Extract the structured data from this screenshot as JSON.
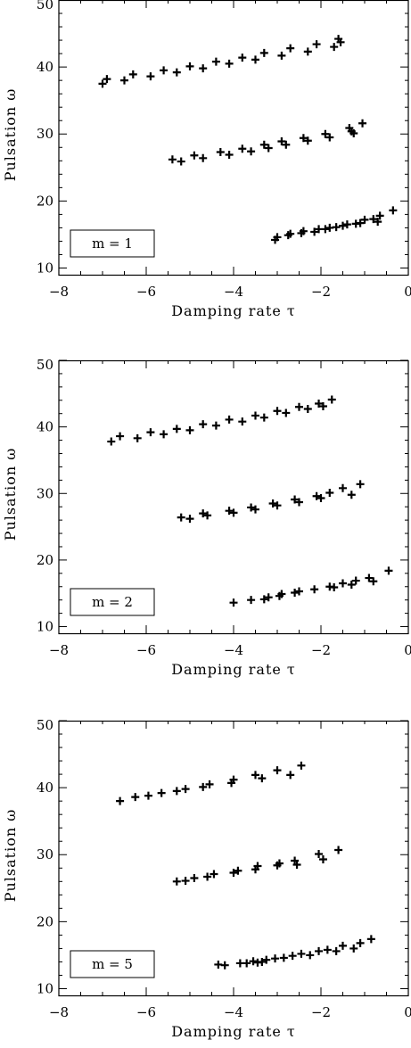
{
  "chart_data": [
    {
      "type": "scatter",
      "marker": "plus",
      "xlabel": "Damping rate τ",
      "ylabel": "Pulsation ω",
      "xlim": [
        -8,
        0
      ],
      "ylim": [
        9,
        50
      ],
      "xticks": [
        "−8",
        "−6",
        "−4",
        "−2",
        "0"
      ],
      "yticks": [
        "10",
        "20",
        "30",
        "40",
        "50"
      ],
      "legend": "m = 1",
      "legend_position": "bottom-left",
      "grid": false,
      "series": [
        {
          "x": [
            -7.0,
            -6.9,
            -6.5,
            -6.3,
            -5.9,
            -5.6,
            -5.3,
            -5.0,
            -4.7,
            -4.4,
            -4.1,
            -3.8,
            -3.5,
            -3.3,
            -2.9,
            -2.7,
            -2.3,
            -2.1,
            -1.7,
            -1.6,
            -1.55
          ],
          "y": [
            37.5,
            38.2,
            38.0,
            38.9,
            38.6,
            39.5,
            39.2,
            40.1,
            39.8,
            40.8,
            40.5,
            41.4,
            41.1,
            42.1,
            41.7,
            42.8,
            42.3,
            43.4,
            43.0,
            44.2,
            43.7
          ]
        },
        {
          "x": [
            -5.4,
            -5.2,
            -4.9,
            -4.7,
            -4.3,
            -4.1,
            -3.8,
            -3.6,
            -3.3,
            -3.2,
            -2.9,
            -2.8,
            -2.4,
            -2.3,
            -1.9,
            -1.8,
            -1.35,
            -1.3,
            -1.25,
            -1.05
          ],
          "y": [
            26.2,
            25.9,
            26.8,
            26.4,
            27.3,
            26.9,
            27.8,
            27.4,
            28.4,
            27.9,
            28.9,
            28.4,
            29.4,
            29.0,
            30.0,
            29.5,
            30.9,
            30.4,
            30.1,
            31.6
          ]
        },
        {
          "x": [
            -3.05,
            -3.0,
            -2.75,
            -2.7,
            -2.45,
            -2.4,
            -2.15,
            -2.05,
            -1.9,
            -1.8,
            -1.65,
            -1.5,
            -1.4,
            -1.2,
            -1.1,
            -1.0,
            -0.8,
            -0.7,
            -0.65,
            -0.35
          ],
          "y": [
            14.2,
            14.6,
            14.9,
            15.1,
            15.2,
            15.5,
            15.4,
            15.8,
            15.8,
            16.0,
            16.1,
            16.3,
            16.5,
            16.6,
            16.7,
            17.2,
            17.3,
            16.9,
            17.8,
            18.6
          ]
        }
      ]
    },
    {
      "type": "scatter",
      "marker": "plus",
      "xlabel": "Damping rate τ",
      "ylabel": "Pulsation ω",
      "xlim": [
        -8,
        0
      ],
      "ylim": [
        9,
        50
      ],
      "xticks": [
        "−8",
        "−6",
        "−4",
        "−2",
        "0"
      ],
      "yticks": [
        "10",
        "20",
        "30",
        "40",
        "50"
      ],
      "legend": "m = 2",
      "legend_position": "bottom-left",
      "grid": false,
      "series": [
        {
          "x": [
            -6.8,
            -6.6,
            -6.2,
            -5.9,
            -5.6,
            -5.3,
            -5.0,
            -4.7,
            -4.4,
            -4.1,
            -3.8,
            -3.5,
            -3.3,
            -3.0,
            -2.8,
            -2.5,
            -2.3,
            -2.05,
            -1.95,
            -1.75
          ],
          "y": [
            37.8,
            38.6,
            38.3,
            39.2,
            38.9,
            39.7,
            39.5,
            40.4,
            40.2,
            41.1,
            40.8,
            41.7,
            41.4,
            42.4,
            42.1,
            43.0,
            42.7,
            43.5,
            43.1,
            44.1
          ]
        },
        {
          "x": [
            -5.2,
            -5.0,
            -4.7,
            -4.6,
            -4.1,
            -4.0,
            -3.6,
            -3.5,
            -3.1,
            -3.0,
            -2.6,
            -2.5,
            -2.1,
            -2.0,
            -1.8,
            -1.5,
            -1.3,
            -1.1
          ],
          "y": [
            26.4,
            26.2,
            27.0,
            26.7,
            27.4,
            27.1,
            27.9,
            27.6,
            28.5,
            28.2,
            29.1,
            28.7,
            29.6,
            29.3,
            30.1,
            30.8,
            29.8,
            31.4
          ]
        },
        {
          "x": [
            -4.0,
            -3.6,
            -3.3,
            -3.2,
            -2.95,
            -2.9,
            -2.6,
            -2.5,
            -2.15,
            -1.8,
            -1.7,
            -1.5,
            -1.3,
            -1.2,
            -0.9,
            -0.8,
            -0.45
          ],
          "y": [
            13.6,
            14.0,
            14.1,
            14.4,
            14.6,
            14.9,
            15.1,
            15.3,
            15.6,
            16.0,
            15.9,
            16.5,
            16.3,
            16.9,
            17.3,
            16.8,
            18.4
          ]
        }
      ]
    },
    {
      "type": "scatter",
      "marker": "plus",
      "xlabel": "Damping rate τ",
      "ylabel": "Pulsation ω",
      "xlim": [
        -8,
        0
      ],
      "ylim": [
        9,
        50
      ],
      "xticks": [
        "−8",
        "−6",
        "−4",
        "−2",
        "0"
      ],
      "yticks": [
        "10",
        "20",
        "30",
        "40",
        "50"
      ],
      "legend": "m = 5",
      "legend_position": "bottom-left",
      "grid": false,
      "series": [
        {
          "x": [
            -6.6,
            -6.25,
            -5.95,
            -5.65,
            -5.3,
            -5.1,
            -4.7,
            -4.55,
            -4.05,
            -4.0,
            -3.5,
            -3.35,
            -3.0,
            -2.7,
            -2.45
          ],
          "y": [
            38.0,
            38.6,
            38.8,
            39.2,
            39.5,
            39.8,
            40.1,
            40.5,
            40.7,
            41.2,
            41.9,
            41.4,
            42.6,
            41.9,
            43.3
          ]
        },
        {
          "x": [
            -5.3,
            -5.1,
            -4.9,
            -4.6,
            -4.45,
            -4.0,
            -3.9,
            -3.5,
            -3.45,
            -3.0,
            -2.95,
            -2.6,
            -2.55,
            -2.05,
            -1.95,
            -1.6
          ],
          "y": [
            26.0,
            26.1,
            26.5,
            26.7,
            27.1,
            27.3,
            27.6,
            27.8,
            28.3,
            28.4,
            28.7,
            29.1,
            28.5,
            30.1,
            29.3,
            30.7
          ]
        },
        {
          "x": [
            -4.35,
            -4.2,
            -3.85,
            -3.7,
            -3.55,
            -3.45,
            -3.35,
            -3.25,
            -3.05,
            -2.85,
            -2.65,
            -2.45,
            -2.25,
            -2.05,
            -1.85,
            -1.65,
            -1.5,
            -1.25,
            -1.1,
            -0.85
          ],
          "y": [
            13.6,
            13.5,
            13.8,
            13.8,
            14.1,
            13.9,
            14.0,
            14.3,
            14.5,
            14.6,
            14.9,
            15.2,
            15.0,
            15.6,
            15.8,
            15.6,
            16.4,
            16.0,
            16.8,
            17.4
          ]
        }
      ]
    }
  ]
}
